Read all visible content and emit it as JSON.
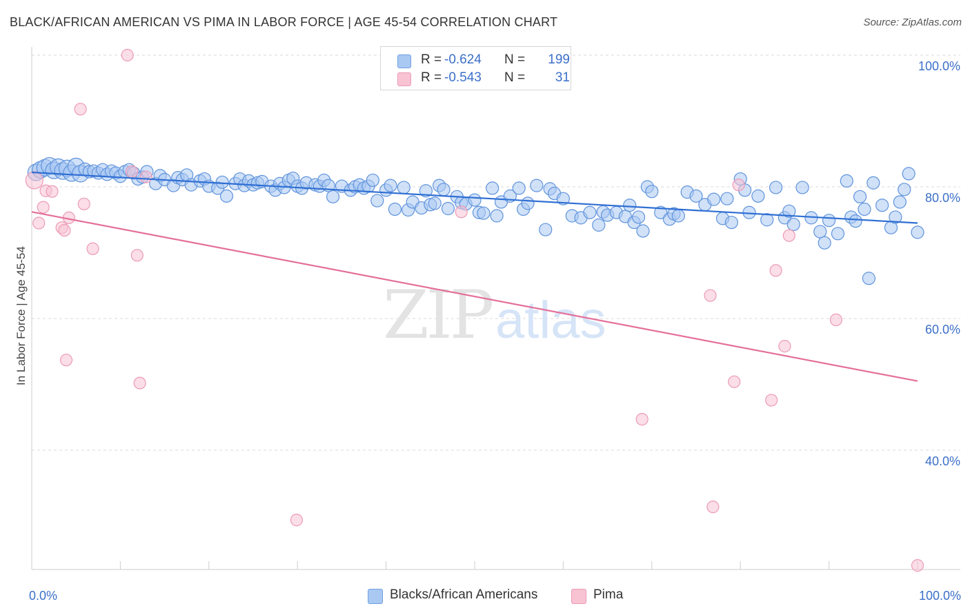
{
  "title": "BLACK/AFRICAN AMERICAN VS PIMA IN LABOR FORCE | AGE 45-54 CORRELATION CHART",
  "source": "Source: ZipAtlas.com",
  "watermark": {
    "zip": "ZIP",
    "atlas": "atlas"
  },
  "legend": {
    "r_label": "R =",
    "n_label": "N =",
    "rows": [
      {
        "r": "-0.624",
        "n": "199",
        "fill": "#a9c8f2",
        "stroke": "#6fa0e0"
      },
      {
        "r": "-0.543",
        "n": "31",
        "fill": "#f8c3d3",
        "stroke": "#ec9ab5"
      }
    ]
  },
  "bottom_legend": [
    {
      "label": "Blacks/African Americans",
      "fill": "#a9c8f2",
      "stroke": "#6fa0e0"
    },
    {
      "label": "Pima",
      "fill": "#f8c3d3",
      "stroke": "#ec9ab5"
    }
  ],
  "colors": {
    "blue_fill": "#a9c8f2",
    "blue_stroke": "#5f93dc",
    "blue_line": "#2f6fd3",
    "pink_fill": "#f8c3d3",
    "pink_stroke": "#ec9ab5",
    "pink_line": "#e46f9a",
    "tick_text": "#3b6fc9",
    "grid": "#d9d9d9"
  },
  "chart_data": {
    "type": "scatter",
    "title": "BLACK/AFRICAN AMERICAN VS PIMA IN LABOR FORCE | AGE 45-54 CORRELATION CHART",
    "xlabel": "",
    "ylabel": "In Labor Force | Age 45-54",
    "xlim": [
      0,
      100
    ],
    "ylim": [
      18,
      101
    ],
    "x_tick_labels": [
      {
        "value": 0,
        "label": "0.0%"
      },
      {
        "value": 100,
        "label": "100.0%"
      }
    ],
    "y_tick_labels": [
      {
        "value": 100,
        "label": "100.0%"
      },
      {
        "value": 80,
        "label": "80.0%"
      },
      {
        "value": 60,
        "label": "60.0%"
      },
      {
        "value": 40,
        "label": "40.0%"
      }
    ],
    "grid": "horizontal dashed",
    "legend_position": "top-center",
    "series": [
      {
        "name": "Blacks/African Americans",
        "color": "#a9c8f2",
        "trend": {
          "x": [
            0,
            100
          ],
          "y": [
            82.2,
            74.5
          ]
        },
        "points": [
          [
            0.5,
            82.2
          ],
          [
            1,
            82.6
          ],
          [
            1.5,
            82.9
          ],
          [
            2,
            83.2
          ],
          [
            2.5,
            82.5
          ],
          [
            3,
            83
          ],
          [
            3.5,
            82.4
          ],
          [
            4,
            82.8
          ],
          [
            4.5,
            82.1
          ],
          [
            5,
            83.1
          ],
          [
            5.5,
            82
          ],
          [
            6,
            82.7
          ],
          [
            6.5,
            82.3
          ],
          [
            7,
            82.4
          ],
          [
            7.5,
            82.1
          ],
          [
            8,
            82.6
          ],
          [
            8.5,
            81.9
          ],
          [
            9,
            82.4
          ],
          [
            9.5,
            82.1
          ],
          [
            10,
            81.6
          ],
          [
            10.5,
            82.3
          ],
          [
            11,
            82.6
          ],
          [
            11.5,
            82.1
          ],
          [
            12,
            81.2
          ],
          [
            12.5,
            81.5
          ],
          [
            13,
            82.3
          ],
          [
            14,
            80.5
          ],
          [
            14.5,
            81.7
          ],
          [
            15,
            81.1
          ],
          [
            16,
            80.2
          ],
          [
            16.5,
            81.4
          ],
          [
            17,
            81.1
          ],
          [
            17.5,
            81.8
          ],
          [
            18,
            80.3
          ],
          [
            19,
            80.9
          ],
          [
            19.5,
            81.2
          ],
          [
            20,
            80.1
          ],
          [
            21,
            79.8
          ],
          [
            21.5,
            80.7
          ],
          [
            22,
            78.6
          ],
          [
            23,
            80.5
          ],
          [
            23.5,
            81.2
          ],
          [
            24,
            80.2
          ],
          [
            24.5,
            80.9
          ],
          [
            25,
            80.3
          ],
          [
            25.5,
            80.6
          ],
          [
            26,
            80.8
          ],
          [
            27,
            80.1
          ],
          [
            27.5,
            79.5
          ],
          [
            28,
            80.5
          ],
          [
            28.5,
            79.9
          ],
          [
            29,
            81
          ],
          [
            29.5,
            81.3
          ],
          [
            30,
            80.1
          ],
          [
            30.5,
            79.8
          ],
          [
            31,
            80.6
          ],
          [
            32,
            80.3
          ],
          [
            32.5,
            80.1
          ],
          [
            33,
            81
          ],
          [
            33.5,
            80.2
          ],
          [
            34,
            78.5
          ],
          [
            35,
            80.1
          ],
          [
            36,
            79.5
          ],
          [
            36.5,
            80
          ],
          [
            37,
            80.3
          ],
          [
            37.5,
            79.8
          ],
          [
            38,
            80.1
          ],
          [
            38.5,
            81
          ],
          [
            39,
            77.9
          ],
          [
            40,
            79.5
          ],
          [
            40.5,
            80.2
          ],
          [
            41,
            76.6
          ],
          [
            42,
            79.9
          ],
          [
            42.5,
            76.5
          ],
          [
            43,
            77.7
          ],
          [
            44,
            76.8
          ],
          [
            44.5,
            79.4
          ],
          [
            45,
            77.3
          ],
          [
            45.5,
            77.5
          ],
          [
            46,
            80.2
          ],
          [
            46.5,
            79.6
          ],
          [
            47,
            76.7
          ],
          [
            48,
            78.5
          ],
          [
            48.5,
            77.6
          ],
          [
            49,
            77.4
          ],
          [
            50,
            78
          ],
          [
            50.5,
            76.1
          ],
          [
            51,
            76
          ],
          [
            52,
            79.8
          ],
          [
            52.5,
            75.6
          ],
          [
            53,
            77.7
          ],
          [
            54,
            78.6
          ],
          [
            55,
            79.8
          ],
          [
            55.5,
            76.6
          ],
          [
            56,
            77.5
          ],
          [
            57,
            80.2
          ],
          [
            58,
            73.5
          ],
          [
            58.5,
            79.7
          ],
          [
            59,
            79
          ],
          [
            60,
            78.2
          ],
          [
            61,
            75.6
          ],
          [
            62,
            75.3
          ],
          [
            63,
            76.1
          ],
          [
            64,
            74.2
          ],
          [
            64.5,
            76.2
          ],
          [
            65,
            75.7
          ],
          [
            66,
            76.1
          ],
          [
            67,
            75.5
          ],
          [
            67.5,
            77.2
          ],
          [
            68,
            74.6
          ],
          [
            68.5,
            75.4
          ],
          [
            69,
            73.3
          ],
          [
            69.5,
            80
          ],
          [
            70,
            79.3
          ],
          [
            71,
            76.1
          ],
          [
            72,
            75.1
          ],
          [
            72.5,
            75.9
          ],
          [
            73,
            75.6
          ],
          [
            74,
            79.2
          ],
          [
            75,
            78.6
          ],
          [
            76,
            77.3
          ],
          [
            77,
            78.1
          ],
          [
            78,
            75.2
          ],
          [
            78.5,
            78.2
          ],
          [
            79,
            74.6
          ],
          [
            80,
            81.2
          ],
          [
            80.5,
            79.5
          ],
          [
            81,
            76.1
          ],
          [
            82,
            78.6
          ],
          [
            83,
            75
          ],
          [
            84,
            79.9
          ],
          [
            85,
            75.3
          ],
          [
            85.5,
            76.3
          ],
          [
            86,
            74.3
          ],
          [
            87,
            79.9
          ],
          [
            88,
            75.3
          ],
          [
            89,
            73.2
          ],
          [
            89.5,
            71.5
          ],
          [
            90,
            74.9
          ],
          [
            91,
            72.9
          ],
          [
            92,
            80.9
          ],
          [
            92.5,
            75.4
          ],
          [
            93,
            74.8
          ],
          [
            93.5,
            78.5
          ],
          [
            94,
            76.6
          ],
          [
            94.5,
            66.1
          ],
          [
            95,
            80.6
          ],
          [
            96,
            77.2
          ],
          [
            97,
            73.8
          ],
          [
            97.5,
            75.4
          ],
          [
            98,
            77.7
          ],
          [
            98.5,
            79.6
          ],
          [
            99,
            82
          ],
          [
            100,
            73.1
          ]
        ]
      },
      {
        "name": "Pima",
        "color": "#f8c3d3",
        "trend": {
          "x": [
            0,
            100
          ],
          "y": [
            76.2,
            50.5
          ]
        },
        "points": [
          [
            0.3,
            81
          ],
          [
            0.8,
            74.5
          ],
          [
            1.3,
            76.9
          ],
          [
            1.6,
            79.4
          ],
          [
            2.3,
            79.3
          ],
          [
            3.4,
            73.8
          ],
          [
            3.7,
            73.4
          ],
          [
            3.9,
            53.7
          ],
          [
            4.2,
            75.3
          ],
          [
            5.5,
            91.8
          ],
          [
            5.9,
            77.4
          ],
          [
            6.9,
            70.6
          ],
          [
            10.8,
            100
          ],
          [
            11.3,
            82.3
          ],
          [
            11.9,
            69.6
          ],
          [
            12.2,
            50.2
          ],
          [
            12.9,
            81.5
          ],
          [
            29.9,
            29.4
          ],
          [
            48.5,
            76.2
          ],
          [
            68.9,
            44.7
          ],
          [
            76.6,
            63.5
          ],
          [
            76.9,
            31.4
          ],
          [
            79.3,
            50.4
          ],
          [
            79.8,
            80.3
          ],
          [
            83.5,
            47.6
          ],
          [
            84,
            67.3
          ],
          [
            85,
            55.8
          ],
          [
            85.5,
            72.6
          ],
          [
            90.8,
            59.8
          ],
          [
            100,
            22.5
          ]
        ]
      }
    ]
  }
}
